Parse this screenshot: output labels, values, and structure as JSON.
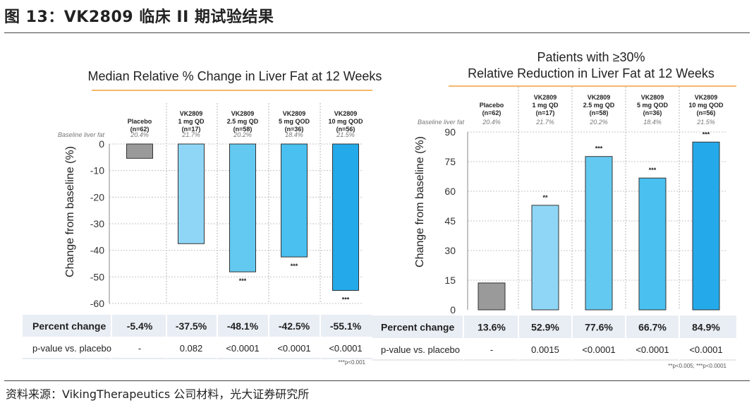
{
  "page": {
    "title": "图 13：VK2809 临床 II 期试验结果",
    "source": "资料来源：VikingTherapeutics 公司材料，光大证券研究所"
  },
  "colors": {
    "placebo": "#9a9a9a",
    "bar_1mg": "#8fd6f6",
    "bar_25mg": "#64c9f1",
    "bar_5mg": "#49c0ef",
    "bar_10mg": "#24aaeb",
    "bar_outline": "#333333",
    "accent_line": "#f5b86b",
    "table_bg": "#e9eef5"
  },
  "chart_data": [
    {
      "type": "bar",
      "title": "Median Relative % Change in Liver Fat at 12 Weeks",
      "ylabel": "Change from baseline (%)",
      "ylim": [
        -60,
        0
      ],
      "yticks": [
        "0",
        "-10",
        "-20",
        "-30",
        "-40",
        "-50",
        "-60"
      ],
      "baseline_label": "Baseline liver fat",
      "categories": [
        {
          "lines": [
            "Placebo",
            "(n=62)"
          ],
          "baseline": "20.4%"
        },
        {
          "lines": [
            "VK2809",
            "1 mg QD",
            "(n=17)"
          ],
          "baseline": "21.7%"
        },
        {
          "lines": [
            "VK2809",
            "2.5 mg QD",
            "(n=58)"
          ],
          "baseline": "20.2%"
        },
        {
          "lines": [
            "VK2809",
            "5 mg QOD",
            "(n=36)"
          ],
          "baseline": "18.4%"
        },
        {
          "lines": [
            "VK2809",
            "10 mg QOD",
            "(n=56)"
          ],
          "baseline": "21.5%"
        }
      ],
      "values": [
        -5.4,
        -37.5,
        -48.1,
        -42.5,
        -55.1
      ],
      "significance": [
        "",
        "",
        "***",
        "***",
        "***"
      ],
      "table": {
        "rows": [
          {
            "label": "Percent change",
            "cells": [
              "-5.4%",
              "-37.5%",
              "-48.1%",
              "-42.5%",
              "-55.1%"
            ]
          },
          {
            "label": "p-value vs. placebo",
            "cells": [
              "-",
              "0.082",
              "<0.0001",
              "<0.0001",
              "<0.0001"
            ]
          }
        ],
        "footnote": "***p<0.001"
      }
    },
    {
      "type": "bar",
      "title": [
        "Patients with ≥30%",
        "Relative Reduction in Liver Fat at 12 Weeks"
      ],
      "ylabel": "Change from baseline (%)",
      "ylim": [
        0,
        90
      ],
      "yticks": [
        "90",
        "75",
        "60",
        "45",
        "30",
        "15",
        "0"
      ],
      "baseline_label": "Baseline liver fat",
      "categories": [
        {
          "lines": [
            "Placebo",
            "(n=62)"
          ],
          "baseline": "20.4%"
        },
        {
          "lines": [
            "VK2809",
            "1 mg QD",
            "(n=17)"
          ],
          "baseline": "21.7%"
        },
        {
          "lines": [
            "VK2809",
            "2.5 mg QD",
            "(n=58)"
          ],
          "baseline": "20.2%"
        },
        {
          "lines": [
            "VK2809",
            "5 mg QOD",
            "(n=36)"
          ],
          "baseline": "18.4%"
        },
        {
          "lines": [
            "VK2809",
            "10 mg QOD",
            "(n=56)"
          ],
          "baseline": "21.5%"
        }
      ],
      "values": [
        13.6,
        52.9,
        77.6,
        66.7,
        84.9
      ],
      "significance": [
        "",
        "**",
        "***",
        "***",
        "***"
      ],
      "table": {
        "rows": [
          {
            "label": "Percent change",
            "cells": [
              "13.6%",
              "52.9%",
              "77.6%",
              "66.7%",
              "84.9%"
            ]
          },
          {
            "label": "p-value vs. placebo",
            "cells": [
              "-",
              "0.0015",
              "<0.0001",
              "<0.0001",
              "<0.0001"
            ]
          }
        ],
        "footnote": "**p<0.005; ***p<0.0001"
      }
    }
  ]
}
